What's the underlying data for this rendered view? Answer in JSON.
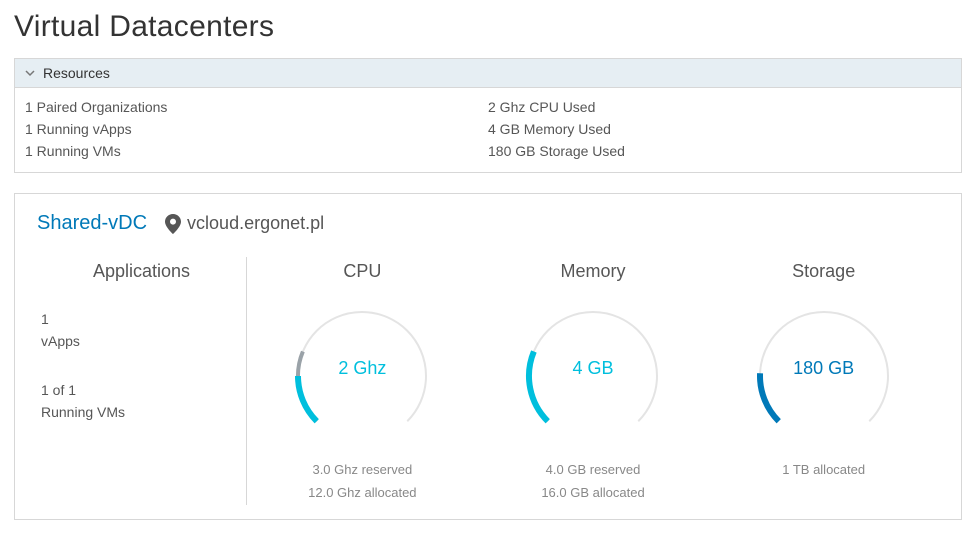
{
  "page": {
    "title": "Virtual Datacenters"
  },
  "colors": {
    "accent_link": "#0079b8",
    "gauge_track": "#e4e4e4",
    "gauge_reserved": "#9aa2a8",
    "gauge_used_cyan": "#00bfdd",
    "gauge_used_blue": "#0079b8",
    "panel_header_bg": "#e6eef3",
    "border": "#d7d7d7"
  },
  "resources": {
    "header": "Resources",
    "left": [
      "1 Paired Organizations",
      "1 Running vApps",
      "1 Running VMs"
    ],
    "right": [
      "2 Ghz CPU Used",
      "4 GB Memory Used",
      "180 GB Storage Used"
    ]
  },
  "vdc": {
    "name": "Shared-vDC",
    "host": "vcloud.ergonet.pl",
    "applications": {
      "title": "Applications",
      "vapps_count": "1",
      "vapps_label": "vApps",
      "vms_count": "1 of 1",
      "vms_label": "Running VMs"
    },
    "gauges": {
      "cpu": {
        "title": "CPU",
        "value_label": "2 Ghz",
        "used": 2,
        "reserved": 3,
        "allocated": 12,
        "reserved_label": "3.0 Ghz reserved",
        "allocated_label": "12.0 Ghz allocated",
        "used_color": "#00bfdd",
        "reserved_color": "#9aa2a8",
        "track_color": "#e4e4e4"
      },
      "memory": {
        "title": "Memory",
        "value_label": "4 GB",
        "used": 4,
        "reserved": 4,
        "allocated": 16,
        "reserved_label": "4.0 GB reserved",
        "allocated_label": "16.0 GB allocated",
        "used_color": "#00bfdd",
        "reserved_color": "#9aa2a8",
        "track_color": "#e4e4e4"
      },
      "storage": {
        "title": "Storage",
        "value_label": "180 GB",
        "used": 180,
        "reserved": 0,
        "allocated": 1024,
        "reserved_label": "",
        "allocated_label": "1 TB allocated",
        "used_color": "#0079b8",
        "reserved_color": "#9aa2a8",
        "track_color": "#e4e4e4"
      }
    }
  }
}
